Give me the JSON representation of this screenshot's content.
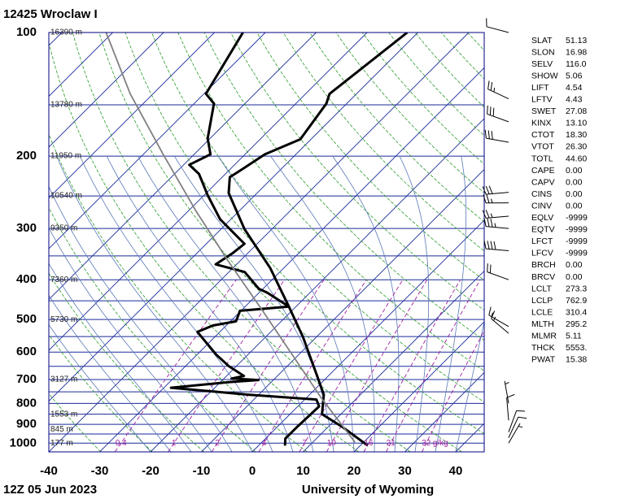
{
  "chart_data": {
    "type": "skewt",
    "title": "12425  Wroclaw I",
    "footer_left": "12Z 05 Jun 2023",
    "footer_right": "University of Wyoming",
    "xlim": [
      -40,
      45.6
    ],
    "xticks": [
      -40,
      -30,
      -20,
      -10,
      0,
      10,
      20,
      30,
      40
    ],
    "ylim": [
      1050,
      100
    ],
    "yticks": [
      100,
      200,
      300,
      400,
      500,
      600,
      700,
      800,
      900,
      1000
    ],
    "log_y": true,
    "grid": true,
    "series": [
      {
        "name": "temperature",
        "color": "#000000",
        "values": [
          100,
          141,
          149,
          182,
          198,
          215,
          225,
          246,
          301,
          375,
          465,
          552,
          686,
          762,
          850,
          912,
          1014
        ],
        "x": [
          -52.1,
          -55.3,
          -54.0,
          -52.1,
          -56.1,
          -57.6,
          -58.5,
          -55.6,
          -45.4,
          -32.6,
          -21.4,
          -12.6,
          -2.2,
          2.8,
          6.3,
          12.7,
          21.5
        ]
      },
      {
        "name": "dewpoint",
        "color": "#000000",
        "values": [
          100,
          141,
          149,
          181,
          198,
          210,
          221,
          249,
          285,
          327,
          345,
          367,
          383,
          421,
          430,
          465,
          476,
          505,
          517,
          536,
          609,
          650,
          686,
          696,
          702,
          710,
          733,
          762,
          783,
          814,
          912,
          975,
          1014
        ],
        "x": [
          -84.4,
          -79.6,
          -76.1,
          -70.5,
          -66.8,
          -68.9,
          -65.2,
          -59.3,
          -52.1,
          -42.5,
          -43.0,
          -44.1,
          -36.9,
          -30.8,
          -28.4,
          -21.4,
          -30.2,
          -28.9,
          -32.6,
          -34.4,
          -26.2,
          -21.4,
          -16.6,
          -18.5,
          -12.9,
          -18.2,
          -28.6,
          -12.1,
          2.3,
          4.2,
          3.9,
          3.9,
          5.2
        ]
      },
      {
        "name": "parcel",
        "color": "#808080",
        "values": [
          100,
          141,
          198,
          272,
          359,
          470,
          617,
          778,
          995
        ],
        "x": [
          -111.3,
          -94.5,
          -76.1,
          -58.5,
          -42.5,
          -26.5,
          -10.5,
          3.1,
          18.3
        ]
      }
    ],
    "heights": [
      {
        "pressure": 100,
        "label": "16390 m"
      },
      {
        "pressure": 150,
        "label": "13780 m"
      },
      {
        "pressure": 200,
        "label": "11950 m"
      },
      {
        "pressure": 250,
        "label": "10540 m"
      },
      {
        "pressure": 300,
        "label": "9350 m"
      },
      {
        "pressure": 400,
        "label": "7360 m"
      },
      {
        "pressure": 500,
        "label": "5730 m"
      },
      {
        "pressure": 700,
        "label": "3127 m"
      },
      {
        "pressure": 850,
        "label": "1553 m"
      },
      {
        "pressure": 925,
        "label": "845 m"
      },
      {
        "pressure": 1000,
        "label": "177 m"
      }
    ],
    "mixing_ratios": [
      0.4,
      1,
      2,
      4,
      7,
      10,
      16,
      21,
      32
    ],
    "mixing_ratio_unit": "g/kg",
    "wind": {
      "pressure": [
        100,
        145,
        165,
        185,
        245,
        260,
        280,
        300,
        340,
        400,
        520,
        540,
        800,
        880,
        940,
        970,
        1000
      ],
      "direction": [
        285,
        295,
        290,
        280,
        265,
        270,
        265,
        275,
        275,
        290,
        300,
        310,
        350,
        355,
        20,
        25,
        30
      ],
      "speed": [
        10,
        25,
        30,
        30,
        30,
        25,
        25,
        35,
        40,
        20,
        15,
        15,
        5,
        10,
        10,
        10,
        5
      ]
    }
  },
  "indices": [
    {
      "label": "SLAT",
      "value": "51.13"
    },
    {
      "label": "SLON",
      "value": "16.98"
    },
    {
      "label": "SELV",
      "value": "116.0"
    },
    {
      "label": "SHOW",
      "value": "5.06"
    },
    {
      "label": "LIFT",
      "value": "4.54"
    },
    {
      "label": "LFTV",
      "value": "4.43"
    },
    {
      "label": "SWET",
      "value": "27.08"
    },
    {
      "label": "KINX",
      "value": "13.10"
    },
    {
      "label": "CTOT",
      "value": "18.30"
    },
    {
      "label": "VTOT",
      "value": "26.30"
    },
    {
      "label": "TOTL",
      "value": "44.60"
    },
    {
      "label": "CAPE",
      "value": "0.00"
    },
    {
      "label": "CAPV",
      "value": "0.00"
    },
    {
      "label": "CINS",
      "value": "0.00"
    },
    {
      "label": "CINV",
      "value": "0.00"
    },
    {
      "label": "EQLV",
      "value": "-9999"
    },
    {
      "label": "EQTV",
      "value": "-9999"
    },
    {
      "label": "LFCT",
      "value": "-9999"
    },
    {
      "label": "LFCV",
      "value": "-9999"
    },
    {
      "label": "BRCH",
      "value": "0.00"
    },
    {
      "label": "BRCV",
      "value": "0.00"
    },
    {
      "label": "LCLT",
      "value": "273.3"
    },
    {
      "label": "LCLP",
      "value": "762.9"
    },
    {
      "label": "LCLE",
      "value": "310.4"
    },
    {
      "label": "MLTH",
      "value": "295.2"
    },
    {
      "label": "MLMR",
      "value": "5.11"
    },
    {
      "label": "THCK",
      "value": "5553."
    },
    {
      "label": "PWAT",
      "value": "15.38"
    }
  ]
}
